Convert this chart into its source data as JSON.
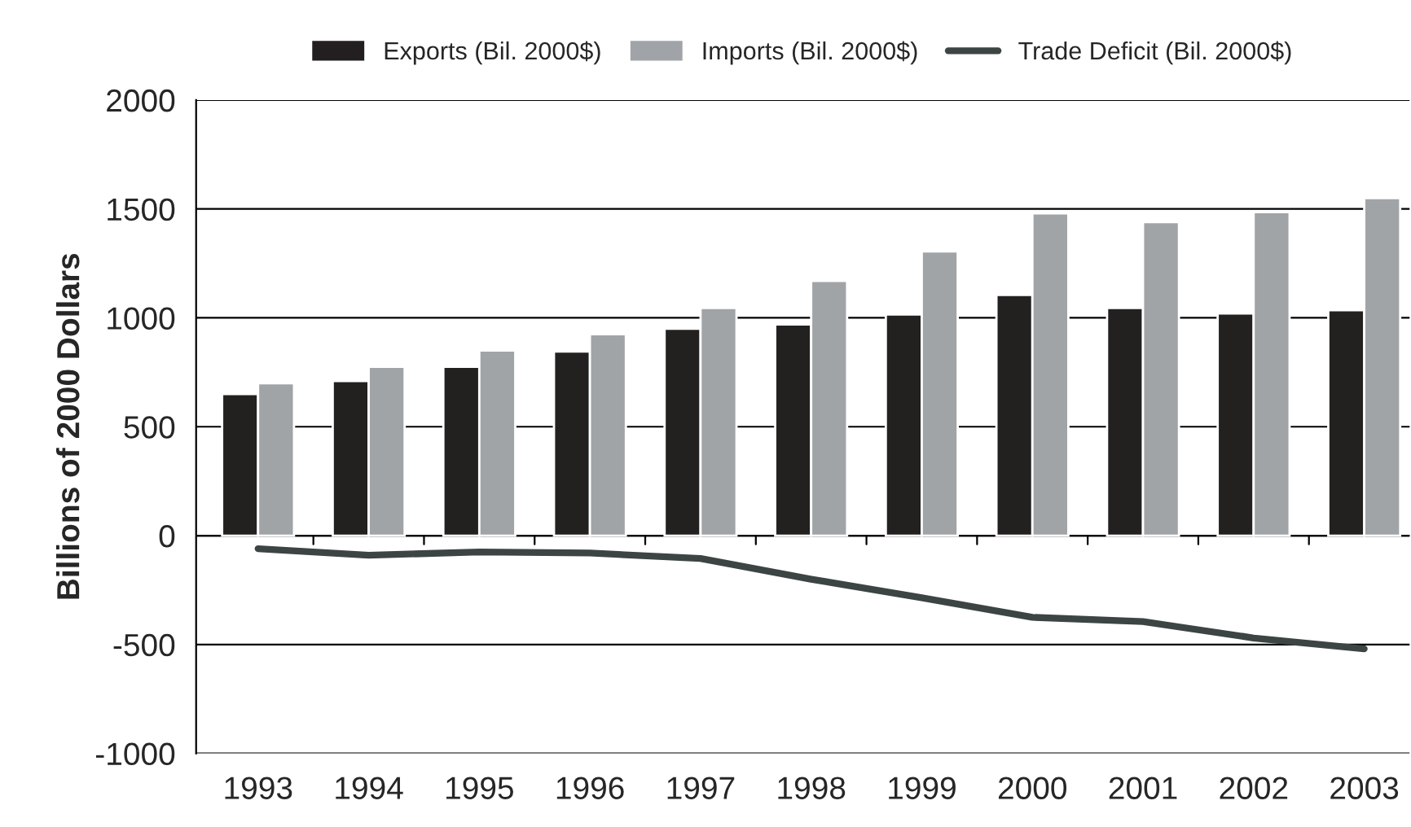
{
  "chart_data": {
    "type": "bar",
    "ylabel": "Billions of 2000 Dollars",
    "categories": [
      "1993",
      "1994",
      "1995",
      "1996",
      "1997",
      "1998",
      "1999",
      "2000",
      "2001",
      "2002",
      "2003"
    ],
    "series": [
      {
        "name": "Exports (Bil. 2000$)",
        "color": "#231f20",
        "values": [
          650,
          710,
          775,
          845,
          950,
          970,
          1015,
          1105,
          1045,
          1020,
          1035
        ]
      },
      {
        "name": "Imports (Bil. 2000$)",
        "color": "#a0a4a8",
        "values": [
          700,
          775,
          850,
          925,
          1045,
          1170,
          1305,
          1480,
          1440,
          1485,
          1550
        ]
      },
      {
        "name": "Trade Deficit (Bil. 2000$)",
        "type": "line",
        "color": "#3c4444",
        "values": [
          -60,
          -90,
          -75,
          -80,
          -105,
          -200,
          -285,
          -375,
          -395,
          -470,
          -520
        ]
      }
    ],
    "ylim": [
      -1000,
      2000
    ],
    "yticks": [
      -1000,
      -500,
      0,
      500,
      1000,
      1500,
      2000
    ],
    "grid": "y",
    "legend": "top"
  }
}
